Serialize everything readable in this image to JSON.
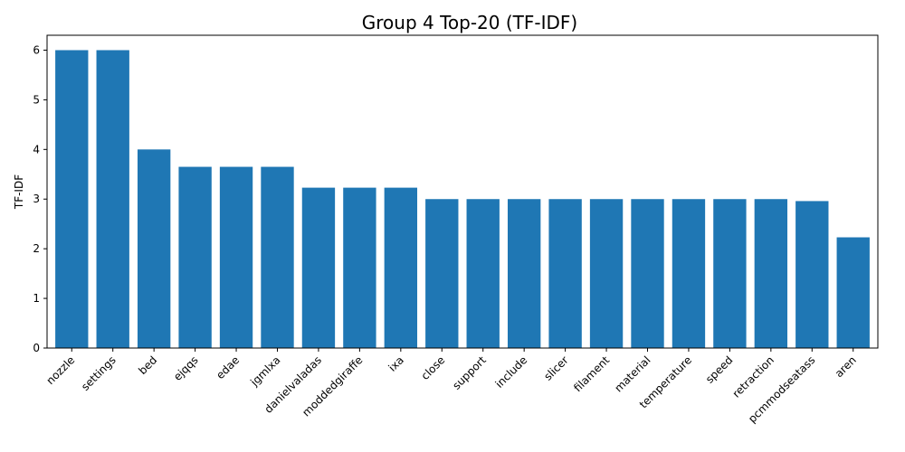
{
  "chart_data": {
    "type": "bar",
    "title": "Group 4 Top-20 (TF-IDF)",
    "xlabel": "",
    "ylabel": "TF-IDF",
    "ylim": [
      0,
      6.3
    ],
    "yticks": [
      0,
      1,
      2,
      3,
      4,
      5,
      6
    ],
    "grid": false,
    "bar_color": "#1f77b4",
    "categories": [
      "nozzle",
      "settings",
      "bed",
      "ejqqs",
      "edae",
      "jgmlxa",
      "danielvaladas",
      "moddedgiraffe",
      "ixa",
      "close",
      "support",
      "include",
      "slicer",
      "filament",
      "material",
      "temperature",
      "speed",
      "retraction",
      "pcmmodseatass",
      "aren"
    ],
    "values": [
      6.0,
      6.0,
      4.0,
      3.65,
      3.65,
      3.65,
      3.23,
      3.23,
      3.23,
      3.0,
      3.0,
      3.0,
      3.0,
      3.0,
      3.0,
      3.0,
      3.0,
      3.0,
      2.96,
      2.23
    ]
  }
}
